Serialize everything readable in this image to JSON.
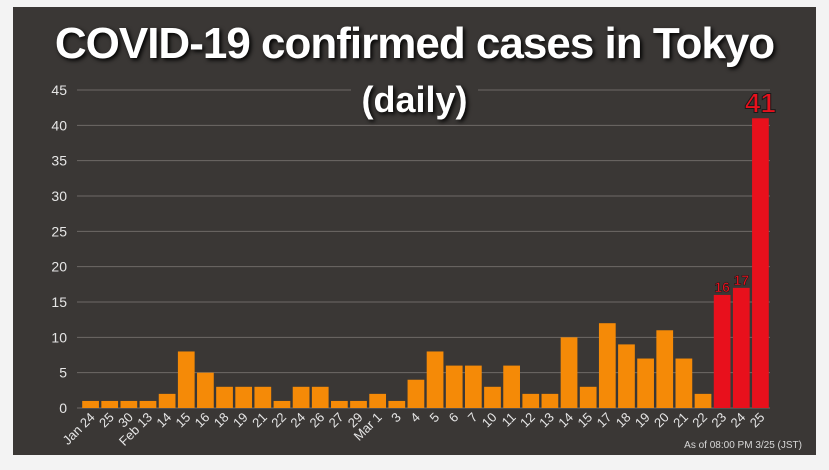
{
  "chart_data": {
    "type": "bar",
    "title": "COVID-19 confirmed cases in Tokyo",
    "subtitle": "(daily)",
    "xlabel": "",
    "ylabel": "",
    "ylim": [
      0,
      45
    ],
    "yticks": [
      0,
      5,
      10,
      15,
      20,
      25,
      30,
      35,
      40,
      45
    ],
    "grid": true,
    "categories": [
      "Jan 24",
      "25",
      "30",
      "Feb 13",
      "14",
      "15",
      "16",
      "18",
      "19",
      "21",
      "22",
      "24",
      "26",
      "27",
      "29",
      "Mar 1",
      "3",
      "4",
      "5",
      "6",
      "7",
      "10",
      "11",
      "12",
      "13",
      "14",
      "15",
      "17",
      "18",
      "19",
      "20",
      "21",
      "22",
      "23",
      "24",
      "25"
    ],
    "values": [
      1,
      1,
      1,
      1,
      2,
      8,
      5,
      3,
      3,
      3,
      1,
      3,
      3,
      1,
      1,
      2,
      1,
      4,
      8,
      6,
      6,
      3,
      6,
      2,
      2,
      10,
      3,
      12,
      9,
      7,
      11,
      7,
      2,
      16,
      17,
      41
    ],
    "highlight_from_index": 33,
    "data_labels": [
      {
        "index": 33,
        "text": "16"
      },
      {
        "index": 34,
        "text": "17"
      },
      {
        "index": 35,
        "text": "41"
      }
    ],
    "colors": {
      "normal_bar": "#f58a07",
      "highlight_bar": "#e8101c",
      "label": "#e8101c",
      "background": "#3a3735",
      "grid": "#6e6a67",
      "tick_text": "#e6e6e6"
    }
  },
  "note": "As of 08:00 PM 3/25 (JST)"
}
